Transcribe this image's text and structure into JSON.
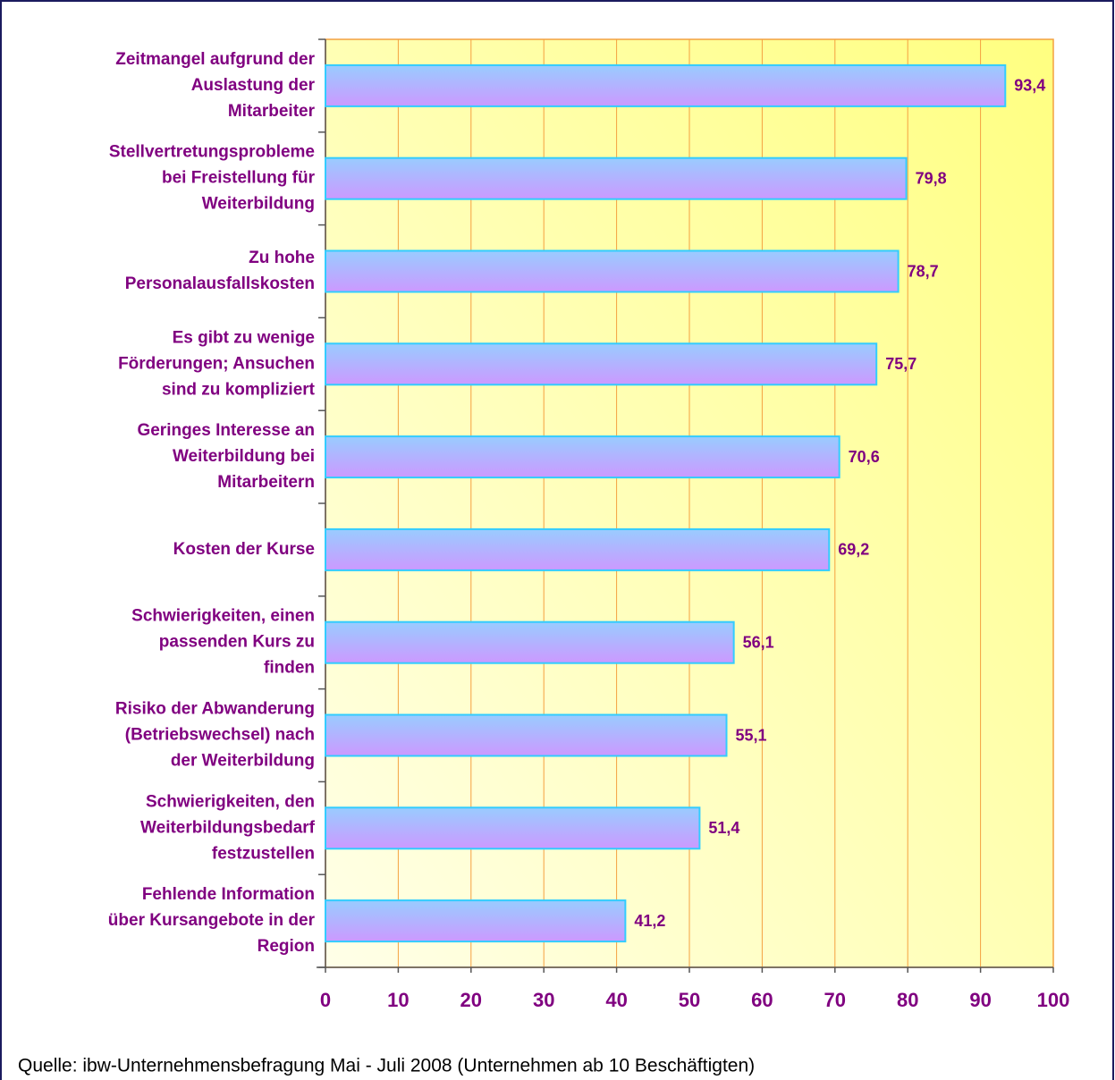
{
  "chart_data": {
    "type": "barh",
    "categories": [
      "Zeitmangel aufgrund der\nAuslastung der\nMitarbeiter",
      "Stellvertretungsprobleme\nbei Freistellung für\nWeiterbildung",
      "Zu hohe\nPersonalausfallskosten",
      "Es gibt zu wenige\nFörderungen; Ansuchen\nsind zu kompliziert",
      "Geringes Interesse an\nWeiterbildung bei\nMitarbeitern",
      "Kosten der Kurse",
      "Schwierigkeiten, einen\npassenden Kurs zu\nfinden",
      "Risiko der Abwanderung\n(Betriebswechsel) nach\nder Weiterbildung",
      "Schwierigkeiten, den\nWeiterbildungsbedarf\nfestzustellen",
      "Fehlende Information\nüber Kursangebote in der\nRegion"
    ],
    "values": [
      93.4,
      79.8,
      78.7,
      75.7,
      70.6,
      69.2,
      56.1,
      55.1,
      51.4,
      41.2
    ],
    "value_labels": [
      "93,4",
      "79,8",
      "78,7",
      "75,7",
      "70,6",
      "69,2",
      "56,1",
      "55,1",
      "51,4",
      "41,2"
    ],
    "xlim": [
      0,
      100
    ],
    "xticks": [
      0,
      10,
      20,
      30,
      40,
      50,
      60,
      70,
      80,
      90,
      100
    ],
    "grid": true,
    "color": "#a6a6ff",
    "edge_color": "#33ccff",
    "source": "Quelle: ibw-Unternehmensbefragung Mai - Juli 2008 (Unternehmen ab 10 Beschäftigten)"
  }
}
